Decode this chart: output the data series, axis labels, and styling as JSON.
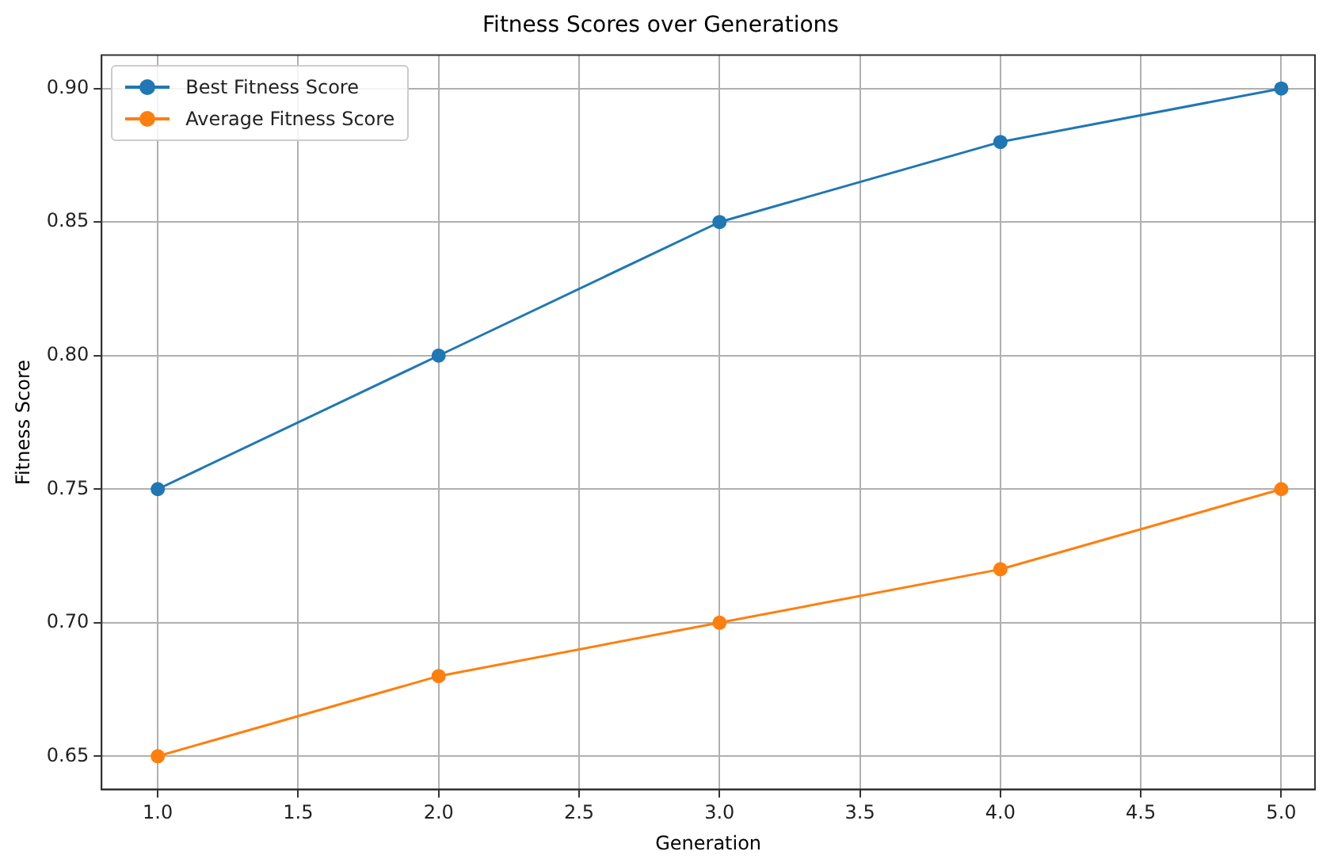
{
  "chart_data": {
    "type": "line",
    "title": "Fitness Scores over Generations",
    "xlabel": "Generation",
    "ylabel": "Fitness Score",
    "x": [
      1,
      2,
      3,
      4,
      5
    ],
    "series": [
      {
        "name": "Best Fitness Score",
        "color": "#1f77b4",
        "values": [
          0.75,
          0.8,
          0.85,
          0.88,
          0.9
        ]
      },
      {
        "name": "Average Fitness Score",
        "color": "#ff7f0e",
        "values": [
          0.65,
          0.68,
          0.7,
          0.72,
          0.75
        ]
      }
    ],
    "xlim": [
      0.8,
      5.12
    ],
    "xticks": [
      {
        "value": 1,
        "label": "1.0"
      },
      {
        "value": 1.5,
        "label": "1.5"
      },
      {
        "value": 2,
        "label": "2.0"
      },
      {
        "value": 2.5,
        "label": "2.5"
      },
      {
        "value": 3,
        "label": "3.0"
      },
      {
        "value": 3.5,
        "label": "3.5"
      },
      {
        "value": 4,
        "label": "4.0"
      },
      {
        "value": 4.5,
        "label": "4.5"
      },
      {
        "value": 5,
        "label": "5.0"
      }
    ],
    "ylim": [
      0.6375,
      0.9125
    ],
    "yticks": [
      {
        "value": 0.65,
        "label": "0.65"
      },
      {
        "value": 0.7,
        "label": "0.70"
      },
      {
        "value": 0.75,
        "label": "0.75"
      },
      {
        "value": 0.8,
        "label": "0.80"
      },
      {
        "value": 0.85,
        "label": "0.85"
      },
      {
        "value": 0.9,
        "label": "0.90"
      }
    ],
    "grid": true,
    "legend": "top left",
    "marker": "circle",
    "line_style": "solid"
  }
}
